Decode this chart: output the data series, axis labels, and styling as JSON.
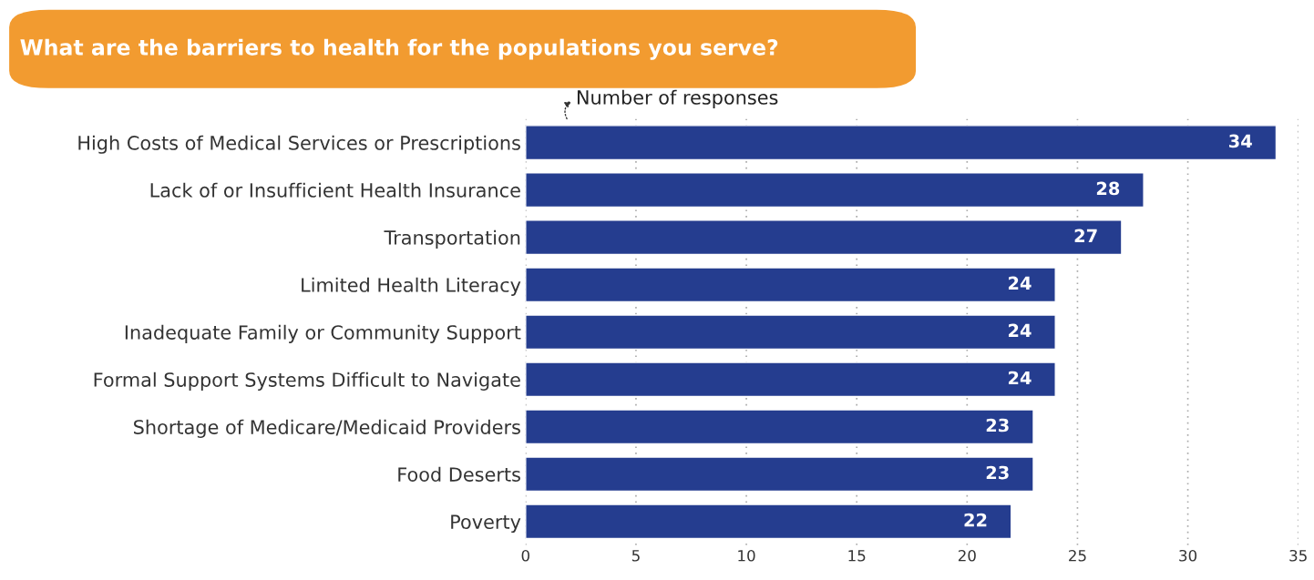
{
  "chart_data": {
    "type": "bar",
    "orientation": "horizontal",
    "title": "What are the barriers to health for the populations you serve?",
    "xlabel": "Number of responses",
    "categories": [
      "High Costs of Medical Services or Prescriptions",
      "Lack of or Insufficient Health Insurance",
      "Transportation",
      "Limited Health Literacy",
      "Inadequate Family or Community Support",
      "Formal Support Systems Difficult to Navigate",
      "Shortage of Medicare/Medicaid Providers",
      "Food Deserts",
      "Poverty"
    ],
    "values": [
      34,
      28,
      27,
      24,
      24,
      24,
      23,
      23,
      22
    ],
    "color": "#253d8f",
    "xlim": [
      0,
      35
    ],
    "xticks": [
      0,
      5,
      10,
      15,
      20,
      25,
      30,
      35
    ],
    "grid": "x",
    "data_labels": true
  }
}
